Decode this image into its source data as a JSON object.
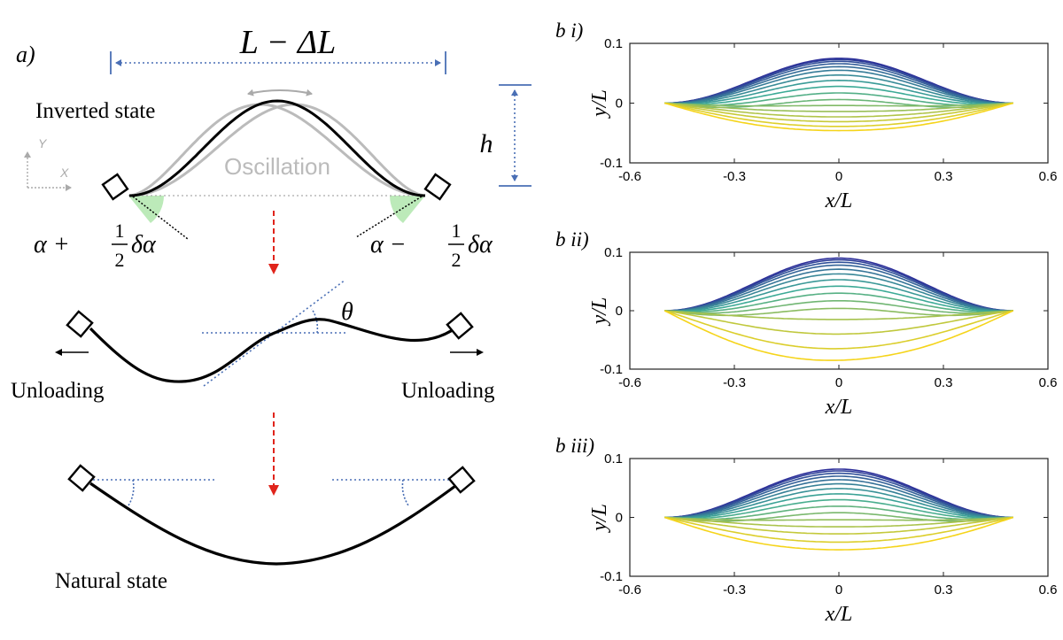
{
  "panel_a": {
    "label": "a)",
    "span_label": "L − ΔL",
    "height_label": "h",
    "inverted_state_label": "Inverted state",
    "oscillation_label": "Oscillation",
    "axis_y_label": "Y",
    "axis_x_label": "X",
    "left_angle": {
      "prefix": "α + ",
      "num": "1",
      "den": "2",
      "suffix": "δα"
    },
    "right_angle": {
      "prefix": "α − ",
      "num": "1",
      "den": "2",
      "suffix": "δα"
    },
    "theta_label": "θ",
    "unloading_left": "Unloading",
    "unloading_right": "Unloading",
    "natural_state_label": "Natural state"
  },
  "colors": {
    "curve": "#000000",
    "ghost_curve": "#bbbbbb",
    "dimension_line": "#4a6fb5",
    "arrow_red": "#e0241b",
    "angle_fill": "#a6e3a1",
    "palette_start": "#2d2f9a",
    "palette_end": "#f5d41a"
  },
  "chart_data": [
    {
      "type": "line",
      "panel_label": "b i)",
      "xlabel": "x/L",
      "ylabel": "y/L",
      "xlim": [
        -0.6,
        0.6
      ],
      "ylim": [
        -0.1,
        0.1
      ],
      "xticks": [
        "-0.6",
        "-0.3",
        "0",
        "0.3",
        "0.6"
      ],
      "yticks": [
        "0.1",
        "0",
        "-0.1"
      ],
      "grid": false,
      "x_range": [
        -0.5,
        0.5
      ],
      "n_curves": 17,
      "final_peak_y": -0.046,
      "final_peak_x": 0.0,
      "final_shape": "symmetric",
      "peak_y_values": [
        0.075,
        0.073,
        0.07,
        0.066,
        0.061,
        0.055,
        0.047,
        0.038,
        0.028,
        0.017,
        0.006,
        -0.004,
        -0.014,
        -0.023,
        -0.031,
        -0.039,
        -0.046
      ]
    },
    {
      "type": "line",
      "panel_label": "b ii)",
      "xlabel": "x/L",
      "ylabel": "y/L",
      "xlim": [
        -0.6,
        0.6
      ],
      "ylim": [
        -0.1,
        0.1
      ],
      "xticks": [
        "-0.6",
        "-0.3",
        "0",
        "0.3",
        "0.6"
      ],
      "yticks": [
        "0.1",
        "0",
        "-0.1"
      ],
      "grid": false,
      "x_range": [
        -0.5,
        0.5
      ],
      "n_curves": 15,
      "final_peak_y": -0.085,
      "final_peak_x": -0.02,
      "final_shape": "asymmetric",
      "peak_y_values": [
        0.09,
        0.087,
        0.083,
        0.078,
        0.071,
        0.063,
        0.053,
        0.042,
        0.03,
        0.017,
        0.004,
        -0.015,
        -0.04,
        -0.065,
        -0.085
      ]
    },
    {
      "type": "line",
      "panel_label": "b iii)",
      "xlabel": "x/L",
      "ylabel": "y/L",
      "xlim": [
        -0.6,
        0.6
      ],
      "ylim": [
        -0.1,
        0.1
      ],
      "xticks": [
        "-0.6",
        "-0.3",
        "0",
        "0.3",
        "0.6"
      ],
      "yticks": [
        "0.1",
        "0",
        "-0.1"
      ],
      "grid": false,
      "x_range": [
        -0.5,
        0.5
      ],
      "n_curves": 16,
      "final_peak_y": -0.055,
      "final_peak_x": 0.0,
      "final_shape": "symmetric",
      "peak_y_values": [
        0.082,
        0.079,
        0.075,
        0.07,
        0.064,
        0.057,
        0.049,
        0.04,
        0.03,
        0.019,
        0.008,
        -0.004,
        -0.016,
        -0.028,
        -0.042,
        -0.055
      ]
    }
  ]
}
